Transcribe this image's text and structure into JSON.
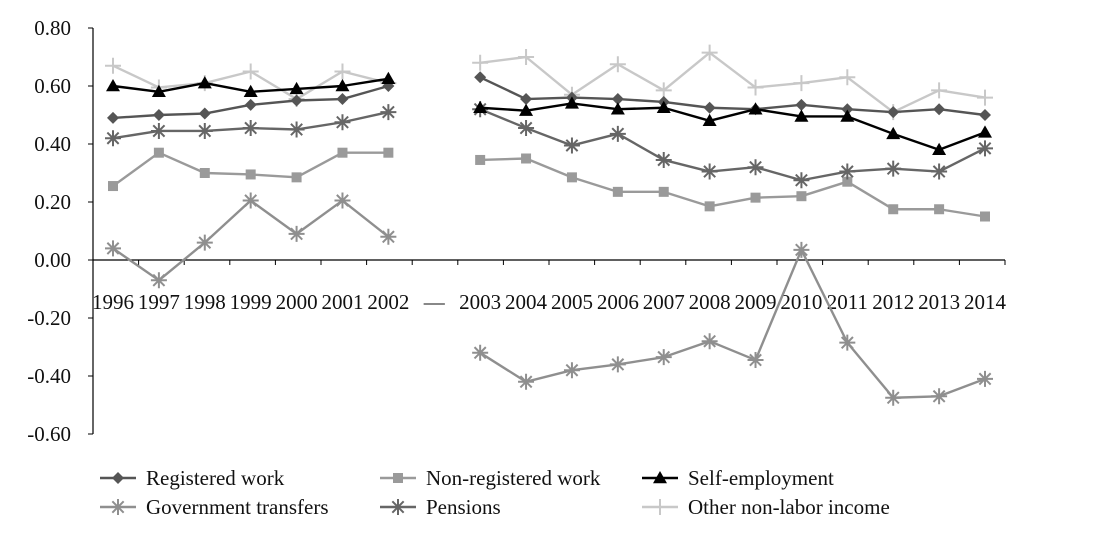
{
  "chart_data": {
    "type": "line",
    "title": "",
    "xlabel": "",
    "ylabel": "",
    "ylim": [
      -0.6,
      0.8
    ],
    "y_ticks": [
      "0.80",
      "0.60",
      "0.40",
      "0.20",
      "0.00",
      "-0.20",
      "-0.40",
      "-0.60"
    ],
    "y_tick_values": [
      0.8,
      0.6,
      0.4,
      0.2,
      0.0,
      -0.2,
      -0.4,
      -0.6
    ],
    "categories": [
      "1996",
      "1997",
      "1998",
      "1999",
      "2000",
      "2001",
      "2002",
      "—",
      "2003",
      "2004",
      "2005",
      "2006",
      "2007",
      "2008",
      "2009",
      "2010",
      "2011",
      "2012",
      "2013",
      "2014"
    ],
    "grid": false,
    "legend_position": "bottom",
    "series": [
      {
        "name": "Registered work",
        "color": "#555555",
        "marker": "diamond",
        "values": [
          0.49,
          0.5,
          0.505,
          0.535,
          0.55,
          0.555,
          0.6,
          null,
          0.63,
          0.555,
          0.56,
          0.555,
          0.545,
          0.525,
          0.52,
          0.535,
          0.52,
          0.51,
          0.52,
          0.5
        ]
      },
      {
        "name": "Non-registered work",
        "color": "#9a9a9a",
        "marker": "square",
        "values": [
          0.255,
          0.37,
          0.3,
          0.295,
          0.285,
          0.37,
          0.37,
          null,
          0.345,
          0.35,
          0.285,
          0.235,
          0.235,
          0.185,
          0.215,
          0.22,
          0.27,
          0.175,
          0.175,
          0.15
        ]
      },
      {
        "name": "Self-employment",
        "color": "#000000",
        "marker": "triangle",
        "values": [
          0.6,
          0.58,
          0.61,
          0.58,
          0.59,
          0.6,
          0.625,
          null,
          0.525,
          0.515,
          0.54,
          0.52,
          0.525,
          0.48,
          0.52,
          0.495,
          0.495,
          0.435,
          0.38,
          0.44
        ]
      },
      {
        "name": "Government transfers",
        "color": "#8f8f8f",
        "marker": "asterisk",
        "values": [
          0.04,
          -0.07,
          0.06,
          0.205,
          0.09,
          0.205,
          0.08,
          null,
          -0.32,
          -0.42,
          -0.38,
          -0.36,
          -0.335,
          -0.28,
          -0.345,
          0.035,
          -0.285,
          -0.475,
          -0.47,
          -0.41
        ]
      },
      {
        "name": "Pensions",
        "color": "#666666",
        "marker": "asterisk",
        "values": [
          0.42,
          0.445,
          0.445,
          0.455,
          0.45,
          0.475,
          0.51,
          null,
          0.52,
          0.455,
          0.395,
          0.435,
          0.345,
          0.305,
          0.32,
          0.275,
          0.305,
          0.315,
          0.305,
          0.385
        ]
      },
      {
        "name": "Other non-labor income",
        "color": "#c8c8c8",
        "marker": "plus",
        "values": [
          0.67,
          0.595,
          0.61,
          0.65,
          0.555,
          0.65,
          0.61,
          null,
          0.68,
          0.7,
          0.57,
          0.675,
          0.585,
          0.715,
          0.595,
          0.61,
          0.63,
          0.51,
          0.585,
          0.56
        ]
      }
    ]
  }
}
